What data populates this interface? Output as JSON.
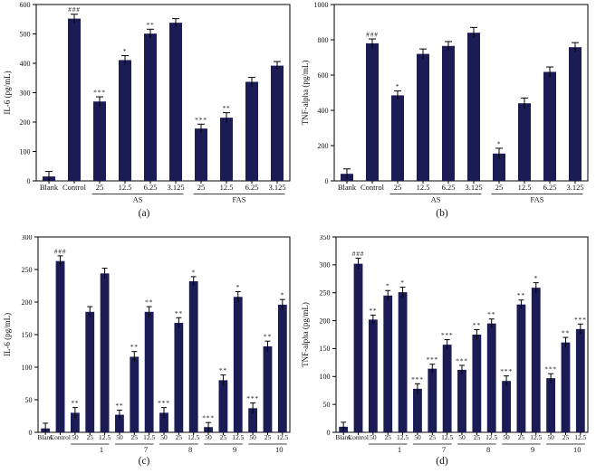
{
  "colors": {
    "bar": "#1b1b55",
    "axis": "#000000",
    "text": "#111111"
  },
  "chart_data": [
    {
      "id": "a",
      "type": "bar",
      "caption": "(a)",
      "xlabel": "",
      "ylabel": "IL-6 (pg/mL)",
      "ylim": [
        0,
        600
      ],
      "ytick_step": 100,
      "categories": [
        "Blank",
        "Control",
        "25",
        "12.5",
        "6.25",
        "3.125",
        "25",
        "12.5",
        "6.25",
        "3.125"
      ],
      "values": [
        15,
        552,
        270,
        411,
        501,
        538,
        178,
        215,
        337,
        392
      ],
      "errors": [
        17,
        15,
        16,
        15,
        15,
        14,
        15,
        17,
        15,
        14
      ],
      "significance": [
        "",
        "###",
        "***",
        "*",
        "**",
        "",
        "***",
        "**",
        "",
        ""
      ],
      "group_labels": [
        {
          "label": "AS",
          "from": 2,
          "to": 5
        },
        {
          "label": "FAS",
          "from": 6,
          "to": 9
        }
      ]
    },
    {
      "id": "b",
      "type": "bar",
      "caption": "(b)",
      "xlabel": "",
      "ylabel": "TNF-alpha (pg/mL)",
      "ylim": [
        0,
        1000
      ],
      "ytick_step": 200,
      "categories": [
        "Blank",
        "Control",
        "25",
        "12.5",
        "6.25",
        "3.125",
        "25",
        "12.5",
        "6.25",
        "3.125"
      ],
      "values": [
        40,
        780,
        485,
        720,
        765,
        840,
        155,
        440,
        618,
        758
      ],
      "errors": [
        28,
        25,
        25,
        28,
        25,
        30,
        30,
        30,
        28,
        26
      ],
      "significance": [
        "",
        "###",
        "*",
        "",
        "",
        "",
        "*",
        "",
        "",
        ""
      ],
      "group_labels": [
        {
          "label": "AS",
          "from": 2,
          "to": 5
        },
        {
          "label": "FAS",
          "from": 6,
          "to": 9
        }
      ]
    },
    {
      "id": "c",
      "type": "bar",
      "caption": "(c)",
      "xlabel": "",
      "ylabel": "IL-6 (pg/mL)",
      "ylim": [
        0,
        300
      ],
      "ytick_step": 50,
      "categories": [
        "Blank",
        "Control",
        "50",
        "25",
        "12.5",
        "50",
        "25",
        "12.5",
        "50",
        "25",
        "12.5",
        "50",
        "25",
        "12.5",
        "50",
        "25",
        "12.5"
      ],
      "values": [
        6,
        263,
        30,
        185,
        244,
        27,
        116,
        185,
        30,
        168,
        232,
        8,
        80,
        208,
        37,
        132,
        196
      ],
      "errors": [
        8,
        8,
        8,
        8,
        8,
        7,
        8,
        8,
        8,
        8,
        7,
        7,
        8,
        8,
        8,
        8,
        8
      ],
      "significance": [
        "",
        "###",
        "**",
        "",
        "",
        "**",
        "**",
        "**",
        "***",
        "**",
        "*",
        "***",
        "**",
        "*",
        "***",
        "**",
        "*"
      ],
      "group_labels": [
        {
          "label": "1",
          "from": 2,
          "to": 4
        },
        {
          "label": "7",
          "from": 5,
          "to": 7
        },
        {
          "label": "8",
          "from": 8,
          "to": 10
        },
        {
          "label": "9",
          "from": 11,
          "to": 13
        },
        {
          "label": "10",
          "from": 14,
          "to": 16
        }
      ]
    },
    {
      "id": "d",
      "type": "bar",
      "caption": "(d)",
      "xlabel": "",
      "ylabel": "TNF-alpha (pg/mL)",
      "ylim": [
        0,
        350
      ],
      "ytick_step": 50,
      "categories": [
        "Blank",
        "Control",
        "50",
        "25",
        "12.5",
        "50",
        "25",
        "12.5",
        "50",
        "25",
        "12.5",
        "50",
        "25",
        "12.5",
        "50",
        "25",
        "12.5"
      ],
      "values": [
        10,
        302,
        202,
        245,
        251,
        78,
        114,
        157,
        112,
        175,
        195,
        92,
        229,
        259,
        97,
        161,
        185
      ],
      "errors": [
        8,
        10,
        8,
        9,
        9,
        9,
        8,
        9,
        8,
        9,
        8,
        9,
        8,
        9,
        8,
        9,
        9
      ],
      "significance": [
        "",
        "###",
        "**",
        "*",
        "*",
        "***",
        "***",
        "***",
        "***",
        "**",
        "**",
        "***",
        "**",
        "*",
        "***",
        "**",
        "***"
      ],
      "group_labels": [
        {
          "label": "1",
          "from": 2,
          "to": 4
        },
        {
          "label": "7",
          "from": 5,
          "to": 7
        },
        {
          "label": "8",
          "from": 8,
          "to": 10
        },
        {
          "label": "9",
          "from": 11,
          "to": 13
        },
        {
          "label": "10",
          "from": 14,
          "to": 16
        }
      ]
    }
  ]
}
